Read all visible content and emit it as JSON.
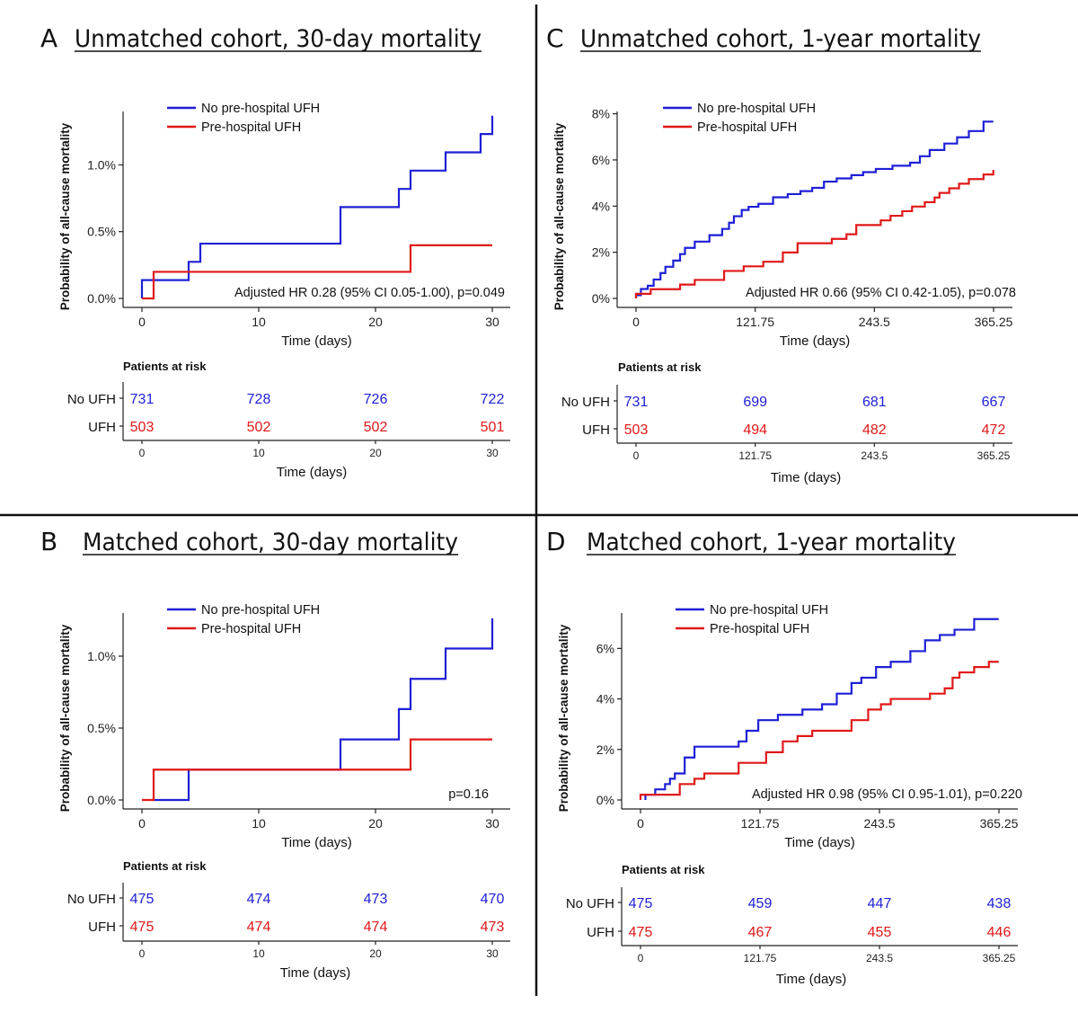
{
  "panels": [
    {
      "letter": "A",
      "title": "Unmatched cohort, 30-day mortality",
      "ylabel": "Probability of all-cause mortality",
      "xlabel": "Time (days)",
      "annotation": "Adjusted HR 0.28 (95% CI 0.05-1.00), p=0.049",
      "legend": [
        "No pre-hospital UFH",
        "Pre-hospital UFH"
      ],
      "risk_header": "Patients at risk",
      "risk_groups": [
        "No UFH",
        "UFH"
      ],
      "risk_xlabel": "Time (days)"
    },
    {
      "letter": "B",
      "title": "Matched cohort, 30-day mortality",
      "ylabel": "Probability of all-cause mortality",
      "xlabel": "Time (days)",
      "annotation": "p=0.16",
      "legend": [
        "No pre-hospital UFH",
        "Pre-hospital UFH"
      ],
      "risk_header": "Patients at risk",
      "risk_groups": [
        "No UFH",
        "UFH"
      ],
      "risk_xlabel": "Time (days)"
    },
    {
      "letter": "C",
      "title": "Unmatched cohort, 1-year mortality",
      "ylabel": "Probability of all-cause mortality",
      "xlabel": "Time (days)",
      "annotation": "Adjusted HR 0.66 (95% CI 0.42-1.05), p=0.078",
      "legend": [
        "No pre-hospital UFH",
        "Pre-hospital UFH"
      ],
      "risk_header": "Patients at risk",
      "risk_groups": [
        "No UFH",
        "UFH"
      ],
      "risk_xlabel": "Time (days)"
    },
    {
      "letter": "D",
      "title": "Matched cohort, 1-year mortality",
      "ylabel": "Probability of all-cause mortality",
      "xlabel": "Time (days)",
      "annotation": "Adjusted HR 0.98 (95% CI 0.95-1.01), p=0.220",
      "legend": [
        "No pre-hospital UFH",
        "Pre-hospital UFH"
      ],
      "risk_header": "Patients at risk",
      "risk_groups": [
        "No UFH",
        "UFH"
      ],
      "risk_xlabel": "Time (days)"
    }
  ],
  "colors": {
    "no_ufh": "#1f1fd6",
    "ufh": "#e01818",
    "axis": "#222222",
    "divider": "#111111"
  },
  "chart_data": [
    {
      "type": "line",
      "title": "Unmatched cohort, 30-day mortality",
      "xlabel": "Time (days)",
      "ylabel": "Probability of all-cause mortality",
      "xlim": [
        0,
        30
      ],
      "ylim": [
        0,
        1.4
      ],
      "xticks": [
        0,
        10,
        20,
        30
      ],
      "xtick_labels": [
        "0",
        "10",
        "20",
        "30"
      ],
      "yticks": [
        0,
        0.5,
        1.0
      ],
      "ytick_labels": [
        "0.0%",
        "0.5%",
        "1.0%"
      ],
      "series": [
        {
          "name": "No pre-hospital UFH",
          "color": "#1f1fd6",
          "x": [
            0,
            4,
            5,
            17,
            22,
            23,
            26,
            29,
            30
          ],
          "y": [
            0.137,
            0.274,
            0.41,
            0.684,
            0.82,
            0.957,
            1.094,
            1.231,
            1.368
          ]
        },
        {
          "name": "Pre-hospital UFH",
          "color": "#e01818",
          "x": [
            0,
            1,
            23,
            30
          ],
          "y": [
            0,
            0.199,
            0.398,
            0.398
          ]
        }
      ],
      "risk_table": {
        "times": [
          0,
          10,
          20,
          30
        ],
        "time_labels": [
          "0",
          "10",
          "20",
          "30"
        ],
        "No UFH": [
          "731",
          "728",
          "726",
          "722"
        ],
        "UFH": [
          "503",
          "502",
          "502",
          "501"
        ]
      }
    },
    {
      "type": "line",
      "title": "Matched cohort, 30-day mortality",
      "xlabel": "Time (days)",
      "ylabel": "Probability of all-cause mortality",
      "xlim": [
        0,
        30
      ],
      "ylim": [
        0,
        1.3
      ],
      "xticks": [
        0,
        10,
        20,
        30
      ],
      "xtick_labels": [
        "0",
        "10",
        "20",
        "30"
      ],
      "yticks": [
        0,
        0.5,
        1.0
      ],
      "ytick_labels": [
        "0.0%",
        "0.5%",
        "1.0%"
      ],
      "series": [
        {
          "name": "No pre-hospital UFH",
          "color": "#1f1fd6",
          "x": [
            1,
            4,
            17,
            22,
            23,
            26,
            30
          ],
          "y": [
            0,
            0.211,
            0.421,
            0.632,
            0.842,
            1.053,
            1.263
          ]
        },
        {
          "name": "Pre-hospital UFH",
          "color": "#e01818",
          "x": [
            0,
            1,
            23,
            30
          ],
          "y": [
            0,
            0.211,
            0.421,
            0.421
          ]
        }
      ],
      "risk_table": {
        "times": [
          0,
          10,
          20,
          30
        ],
        "time_labels": [
          "0",
          "10",
          "20",
          "30"
        ],
        "No UFH": [
          "475",
          "474",
          "473",
          "470"
        ],
        "UFH": [
          "475",
          "474",
          "474",
          "473"
        ]
      }
    },
    {
      "type": "line",
      "title": "Unmatched cohort, 1-year mortality",
      "xlabel": "Time (days)",
      "ylabel": "Probability of all-cause mortality",
      "xlim": [
        0,
        365.25
      ],
      "ylim": [
        0,
        8.1
      ],
      "xticks": [
        0,
        121.75,
        243.5,
        365.25
      ],
      "xtick_labels": [
        "0",
        "121.75",
        "243.5",
        "365.25"
      ],
      "yticks": [
        0,
        2,
        4,
        6,
        8
      ],
      "ytick_labels": [
        "0%",
        "2%",
        "4%",
        "6%",
        "8%"
      ],
      "series": [
        {
          "name": "No pre-hospital UFH",
          "color": "#1f1fd6",
          "x": [
            0,
            5,
            12,
            18,
            25,
            30,
            38,
            45,
            50,
            60,
            75,
            88,
            95,
            100,
            108,
            115,
            125,
            140,
            155,
            168,
            180,
            192,
            205,
            220,
            232,
            245,
            262,
            280,
            290,
            300,
            315,
            328,
            340,
            355,
            365
          ],
          "y": [
            0.14,
            0.41,
            0.55,
            0.82,
            1.1,
            1.37,
            1.64,
            1.92,
            2.19,
            2.46,
            2.74,
            3.01,
            3.28,
            3.56,
            3.83,
            3.97,
            4.1,
            4.38,
            4.52,
            4.65,
            4.79,
            5.06,
            5.2,
            5.34,
            5.47,
            5.61,
            5.75,
            5.88,
            6.16,
            6.43,
            6.71,
            6.98,
            7.25,
            7.66,
            7.66
          ]
        },
        {
          "name": "Pre-hospital UFH",
          "color": "#e01818",
          "x": [
            0,
            15,
            45,
            60,
            90,
            110,
            130,
            150,
            165,
            200,
            215,
            225,
            250,
            260,
            272,
            282,
            295,
            305,
            310,
            320,
            330,
            340,
            355,
            365
          ],
          "y": [
            0.2,
            0.4,
            0.6,
            0.8,
            1.19,
            1.39,
            1.59,
            1.99,
            2.39,
            2.58,
            2.78,
            3.18,
            3.38,
            3.58,
            3.78,
            3.98,
            4.17,
            4.37,
            4.57,
            4.77,
            4.97,
            5.17,
            5.37,
            5.57
          ]
        }
      ],
      "risk_table": {
        "times": [
          0,
          121.75,
          243.5,
          365.25
        ],
        "time_labels": [
          "0",
          "121.75",
          "243.5",
          "365.25"
        ],
        "No UFH": [
          "731",
          "699",
          "681",
          "667"
        ],
        "UFH": [
          "503",
          "494",
          "482",
          "472"
        ]
      }
    },
    {
      "type": "line",
      "title": "Matched cohort, 1-year mortality",
      "xlabel": "Time (days)",
      "ylabel": "Probability of all-cause mortality",
      "xlim": [
        0,
        365.25
      ],
      "ylim": [
        0,
        7.4
      ],
      "xticks": [
        0,
        121.75,
        243.5,
        365.25
      ],
      "xtick_labels": [
        "0",
        "121.75",
        "243.5",
        "365.25"
      ],
      "yticks": [
        0,
        2,
        4,
        6
      ],
      "ytick_labels": [
        "0%",
        "2%",
        "4%",
        "6%"
      ],
      "series": [
        {
          "name": "No pre-hospital UFH",
          "color": "#1f1fd6",
          "x": [
            5,
            15,
            25,
            30,
            35,
            45,
            55,
            100,
            108,
            120,
            140,
            165,
            185,
            200,
            215,
            225,
            240,
            255,
            275,
            290,
            305,
            320,
            340,
            365
          ],
          "y": [
            0.21,
            0.42,
            0.63,
            0.84,
            1.05,
            1.68,
            2.11,
            2.32,
            2.74,
            3.16,
            3.37,
            3.58,
            3.79,
            4.21,
            4.63,
            4.84,
            5.26,
            5.47,
            5.89,
            6.32,
            6.53,
            6.74,
            7.16,
            7.16
          ]
        },
        {
          "name": "Pre-hospital UFH",
          "color": "#e01818",
          "x": [
            0,
            40,
            55,
            65,
            100,
            128,
            145,
            160,
            175,
            215,
            232,
            245,
            255,
            295,
            310,
            318,
            325,
            340,
            355,
            365
          ],
          "y": [
            0.21,
            0.63,
            0.84,
            1.05,
            1.47,
            1.89,
            2.32,
            2.53,
            2.74,
            3.16,
            3.58,
            3.79,
            4.0,
            4.21,
            4.42,
            4.84,
            5.05,
            5.26,
            5.47,
            5.47
          ]
        }
      ],
      "risk_table": {
        "times": [
          0,
          121.75,
          243.5,
          365.25
        ],
        "time_labels": [
          "0",
          "121.75",
          "243.5",
          "365.25"
        ],
        "No UFH": [
          "475",
          "459",
          "447",
          "438"
        ],
        "UFH": [
          "475",
          "467",
          "455",
          "446"
        ]
      }
    }
  ]
}
